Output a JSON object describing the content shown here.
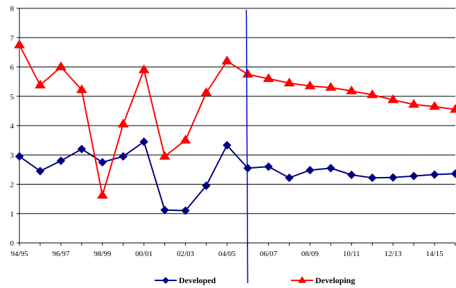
{
  "chart_data": {
    "type": "line",
    "x": [
      "94/95",
      "95/96",
      "96/97",
      "97/98",
      "98/99",
      "99/00",
      "00/01",
      "01/02",
      "02/03",
      "03/04",
      "04/05",
      "05/06",
      "06/07",
      "07/08",
      "08/09",
      "09/10",
      "10/11",
      "11/12",
      "12/13",
      "13/14",
      "14/15",
      "15/16"
    ],
    "x_tick_labels": [
      "94/95",
      "96/97",
      "98/99",
      "00/01",
      "02/03",
      "04/05",
      "06/07",
      "08/09",
      "10/11",
      "12/13",
      "14/15"
    ],
    "ylim": [
      0,
      8
    ],
    "y_ticks": [
      0,
      1,
      2,
      3,
      4,
      5,
      6,
      7,
      8
    ],
    "grid": "horizontal",
    "legend_position": "bottom",
    "vertical_marker_index": 11,
    "series": [
      {
        "name": "Developed",
        "color": "#000080",
        "marker": "diamond",
        "values": [
          2.95,
          2.45,
          2.8,
          3.2,
          2.75,
          2.95,
          3.45,
          1.12,
          1.1,
          1.95,
          3.33,
          2.55,
          2.6,
          2.22,
          2.48,
          2.55,
          2.32,
          2.22,
          2.23,
          2.28,
          2.33,
          2.36
        ]
      },
      {
        "name": "Developing",
        "color": "#ff0000",
        "marker": "triangle",
        "values": [
          6.75,
          5.38,
          6.0,
          5.22,
          1.62,
          4.05,
          5.9,
          2.95,
          3.5,
          5.12,
          6.2,
          5.75,
          5.6,
          5.45,
          5.35,
          5.3,
          5.18,
          5.05,
          4.88,
          4.72,
          4.65,
          4.55
        ]
      }
    ],
    "marker_line_color": "#0000cc"
  }
}
